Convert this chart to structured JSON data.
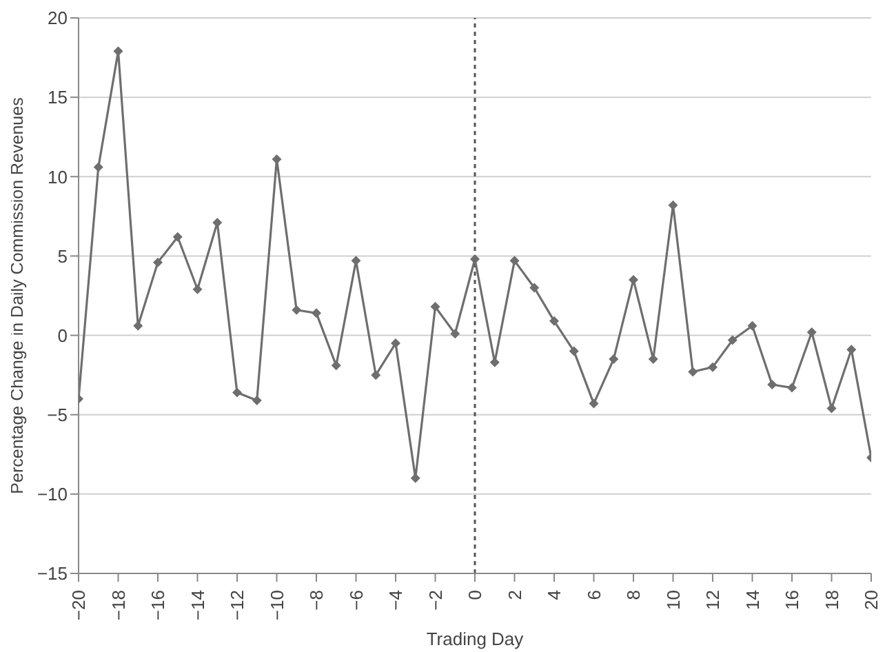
{
  "chart_data": {
    "type": "line",
    "xlabel": "Trading Day",
    "ylabel": "Percentage Change in Daily Commission Revenues",
    "x": [
      -20,
      -19,
      -18,
      -17,
      -16,
      -15,
      -14,
      -13,
      -12,
      -11,
      -10,
      -9,
      -8,
      -7,
      -6,
      -5,
      -4,
      -3,
      -2,
      -1,
      0,
      1,
      2,
      3,
      4,
      5,
      6,
      7,
      8,
      9,
      10,
      11,
      12,
      13,
      14,
      15,
      16,
      17,
      18,
      19,
      20
    ],
    "series": [
      {
        "color": "#6e6e6e",
        "values": [
          -4,
          10.6,
          17.9,
          0.6,
          4.6,
          6.2,
          2.9,
          7.1,
          -3.6,
          -4.1,
          11.1,
          1.6,
          1.4,
          -1.9,
          4.7,
          -2.5,
          -0.5,
          -9,
          1.8,
          0.1,
          4.8,
          -1.7,
          4.7,
          3.0,
          0.9,
          -1.0,
          -4.3,
          -1.5,
          3.5,
          -1.5,
          8.2,
          -2.3,
          -2.0,
          -0.3,
          0.6,
          -3.1,
          -3.3,
          0.2,
          -4.6,
          -0.9,
          -7.7
        ]
      }
    ],
    "xlim": [
      -20,
      20
    ],
    "xticks": [
      {
        "value": -20,
        "label": "−20"
      },
      {
        "value": -18,
        "label": "−18"
      },
      {
        "value": -16,
        "label": "−16"
      },
      {
        "value": -14,
        "label": "−14"
      },
      {
        "value": -12,
        "label": "−12"
      },
      {
        "value": -10,
        "label": "−10"
      },
      {
        "value": -8,
        "label": "−8"
      },
      {
        "value": -6,
        "label": "−6"
      },
      {
        "value": -4,
        "label": "−4"
      },
      {
        "value": -2,
        "label": "−2"
      },
      0,
      2,
      4,
      6,
      8,
      10,
      12,
      14,
      16,
      18,
      20
    ],
    "ylim": [
      -15,
      20
    ],
    "yticks": [
      {
        "value": -15,
        "label": "−15"
      },
      {
        "value": -10,
        "label": "−10"
      },
      {
        "value": -5,
        "label": "−5"
      },
      0,
      5,
      10,
      15,
      20
    ],
    "ref_lines": [
      {
        "axis": "x",
        "value": 0,
        "color": "#555555",
        "line_style": "dotted"
      }
    ],
    "grid": "y",
    "legend": false,
    "marker": "diamond",
    "line_style": "solid"
  }
}
